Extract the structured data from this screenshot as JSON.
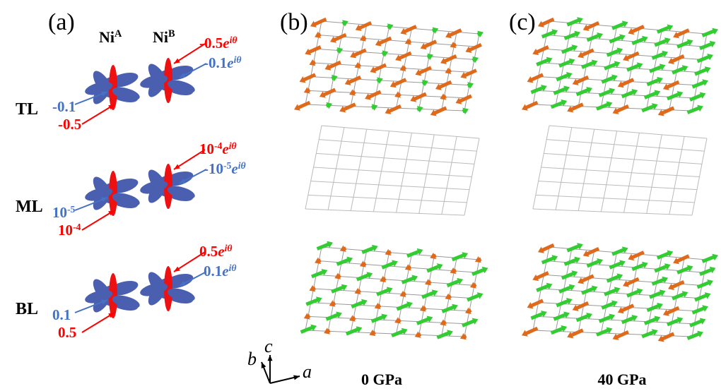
{
  "panel_labels": [
    "(a)",
    "(b)",
    "(c)"
  ],
  "columns": [
    [
      {
        "text": "Ni"
      },
      {
        "text": "A",
        "sup": true
      }
    ],
    [
      {
        "text": "Ni"
      },
      {
        "text": "B",
        "sup": true
      }
    ]
  ],
  "rows": [
    {
      "name": "TL",
      "labels": [
        {
          "color": "#ff0000",
          "segments": [
            {
              "text": "-0.5"
            },
            {
              "text": "e",
              "italic": true
            },
            {
              "text": "iθ",
              "sup": true,
              "italic": true
            }
          ]
        },
        {
          "color": "#4472c4",
          "segments": [
            {
              "text": "-0.1"
            },
            {
              "text": "e",
              "italic": true
            },
            {
              "text": "iθ",
              "sup": true,
              "italic": true
            }
          ]
        },
        {
          "color": "#4472c4",
          "segments": [
            {
              "text": "-0.1"
            }
          ]
        },
        {
          "color": "#ff0000",
          "segments": [
            {
              "text": "-0.5"
            }
          ]
        }
      ]
    },
    {
      "name": "ML",
      "labels": [
        {
          "color": "#ff0000",
          "segments": [
            {
              "text": "10"
            },
            {
              "text": "-4",
              "sup": true
            },
            {
              "text": "e",
              "italic": true
            },
            {
              "text": "iθ",
              "sup": true,
              "italic": true
            }
          ]
        },
        {
          "color": "#4472c4",
          "segments": [
            {
              "text": "-10"
            },
            {
              "text": "-5",
              "sup": true
            },
            {
              "text": "e",
              "italic": true
            },
            {
              "text": "iθ",
              "sup": true,
              "italic": true
            }
          ]
        },
        {
          "color": "#4472c4",
          "segments": [
            {
              "text": "10"
            },
            {
              "text": "-5",
              "sup": true
            }
          ]
        },
        {
          "color": "#ff0000",
          "segments": [
            {
              "text": "10"
            },
            {
              "text": "-4",
              "sup": true
            }
          ]
        }
      ]
    },
    {
      "name": "BL",
      "labels": [
        {
          "color": "#ff0000",
          "segments": [
            {
              "text": "0.5"
            },
            {
              "text": "e",
              "italic": true
            },
            {
              "text": "iθ",
              "sup": true,
              "italic": true
            }
          ]
        },
        {
          "color": "#4472c4",
          "segments": [
            {
              "text": "0.1"
            },
            {
              "text": "e",
              "italic": true
            },
            {
              "text": "iθ",
              "sup": true,
              "italic": true
            }
          ]
        },
        {
          "color": "#4472c4",
          "segments": [
            {
              "text": "0.1"
            }
          ]
        },
        {
          "color": "#ff0000",
          "segments": [
            {
              "text": "0.5"
            }
          ]
        }
      ]
    }
  ],
  "axes": [
    "a",
    "b",
    "c"
  ],
  "pressures": [
    "0 GPa",
    "40 GPa"
  ]
}
